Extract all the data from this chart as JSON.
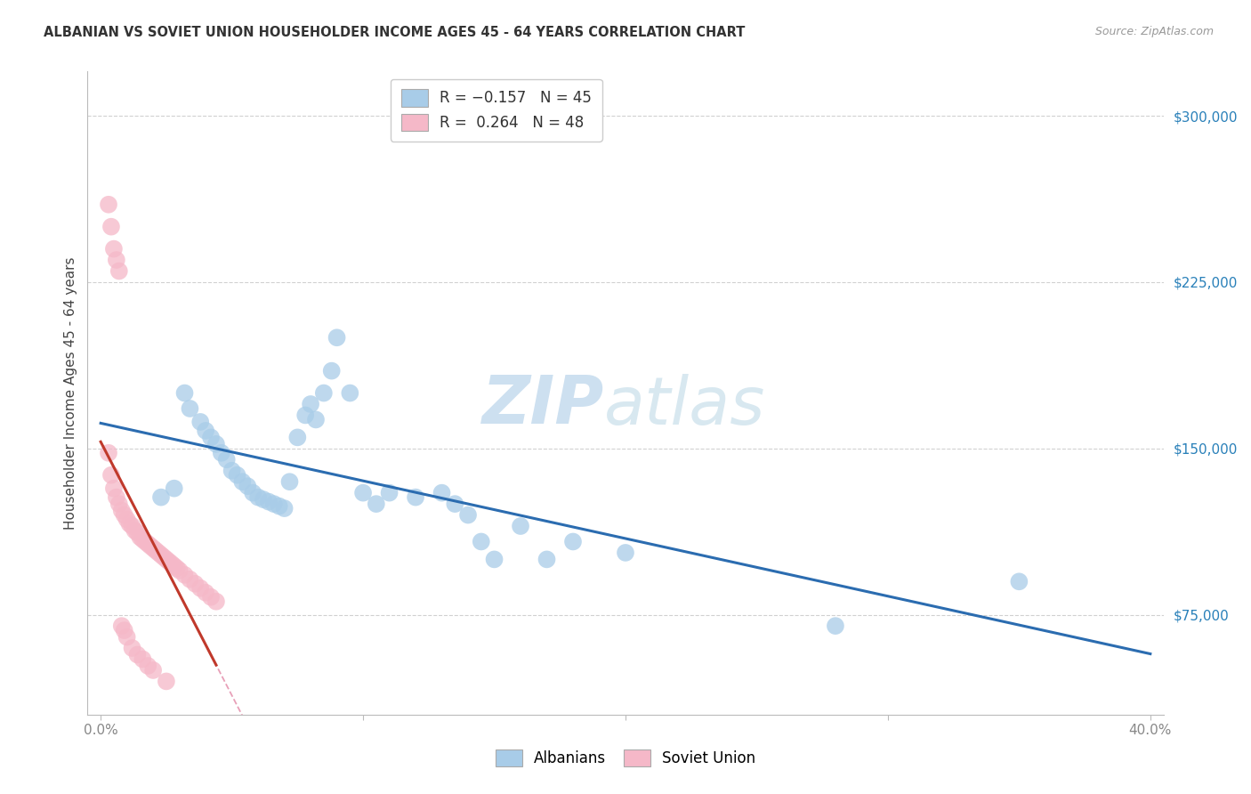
{
  "title": "ALBANIAN VS SOVIET UNION HOUSEHOLDER INCOME AGES 45 - 64 YEARS CORRELATION CHART",
  "source": "Source: ZipAtlas.com",
  "ylabel": "Householder Income Ages 45 - 64 years",
  "y_ticks": [
    75000,
    150000,
    225000,
    300000
  ],
  "y_tick_labels": [
    "$75,000",
    "$150,000",
    "$225,000",
    "$300,000"
  ],
  "watermark_zip": "ZIP",
  "watermark_atlas": "atlas",
  "blue_color": "#a8cce8",
  "pink_color": "#f5b8c8",
  "blue_line_color": "#2b6cb0",
  "pink_line_color": "#c0392b",
  "pink_dashed_color": "#e8a0b8",
  "albanians_x": [
    0.023,
    0.028,
    0.032,
    0.034,
    0.038,
    0.04,
    0.042,
    0.044,
    0.046,
    0.048,
    0.05,
    0.052,
    0.054,
    0.056,
    0.058,
    0.06,
    0.062,
    0.064,
    0.066,
    0.068,
    0.07,
    0.072,
    0.075,
    0.078,
    0.08,
    0.082,
    0.085,
    0.088,
    0.09,
    0.095,
    0.1,
    0.105,
    0.11,
    0.12,
    0.13,
    0.135,
    0.14,
    0.145,
    0.15,
    0.16,
    0.17,
    0.18,
    0.2,
    0.28,
    0.35
  ],
  "albanians_y": [
    128000,
    132000,
    175000,
    168000,
    162000,
    158000,
    155000,
    152000,
    148000,
    145000,
    140000,
    138000,
    135000,
    133000,
    130000,
    128000,
    127000,
    126000,
    125000,
    124000,
    123000,
    135000,
    155000,
    165000,
    170000,
    163000,
    175000,
    185000,
    200000,
    175000,
    130000,
    125000,
    130000,
    128000,
    130000,
    125000,
    120000,
    108000,
    100000,
    115000,
    100000,
    108000,
    103000,
    70000,
    90000
  ],
  "soviet_x": [
    0.003,
    0.004,
    0.005,
    0.006,
    0.007,
    0.008,
    0.009,
    0.01,
    0.011,
    0.012,
    0.013,
    0.014,
    0.015,
    0.016,
    0.017,
    0.018,
    0.019,
    0.02,
    0.021,
    0.022,
    0.023,
    0.024,
    0.025,
    0.026,
    0.027,
    0.028,
    0.029,
    0.03,
    0.032,
    0.034,
    0.036,
    0.038,
    0.04,
    0.042,
    0.044,
    0.003,
    0.004,
    0.005,
    0.006,
    0.007,
    0.008,
    0.009,
    0.01,
    0.012,
    0.014,
    0.016,
    0.018,
    0.02,
    0.025
  ],
  "soviet_y": [
    148000,
    138000,
    132000,
    128000,
    125000,
    122000,
    120000,
    118000,
    116000,
    115000,
    113000,
    112000,
    110000,
    109000,
    108000,
    107000,
    106000,
    105000,
    104000,
    103000,
    102000,
    101000,
    100000,
    99000,
    98000,
    97000,
    96000,
    95000,
    93000,
    91000,
    89000,
    87000,
    85000,
    83000,
    81000,
    260000,
    250000,
    240000,
    235000,
    230000,
    70000,
    68000,
    65000,
    60000,
    57000,
    55000,
    52000,
    50000,
    45000
  ],
  "title_fontsize": 10.5,
  "ytick_color": "#2980b9",
  "axis_color": "#888888",
  "grid_color": "#cccccc"
}
